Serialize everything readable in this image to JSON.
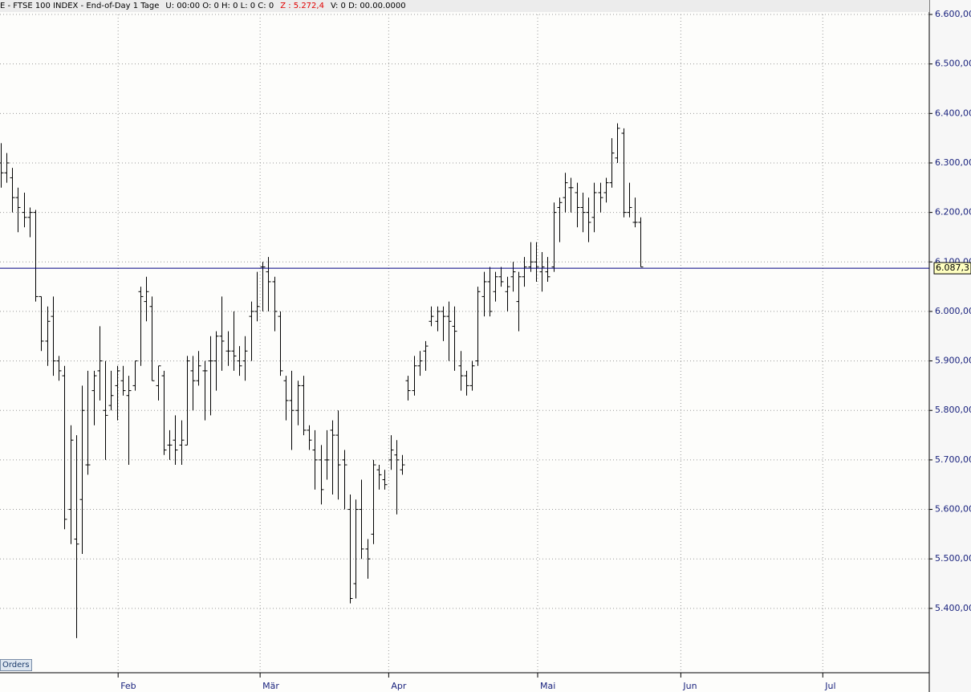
{
  "header": {
    "title": "E - FTSE 100 INDEX - End-of-Day 1 Tage",
    "fields": "U: 00:00   O: 0   H: 0   L: 0   C: 0",
    "highlight": "Z : 5.272,4",
    "tail": "V: 0   D: 00.00.0000"
  },
  "tab": "Orders",
  "chart_data": {
    "type": "ohlc",
    "color": "#000000",
    "open": [
      6300,
      6280,
      6270,
      6230,
      6200,
      6190,
      6200,
      6030,
      5940,
      5990,
      5900,
      5870,
      5600,
      5540,
      5620,
      5690,
      5840,
      5880,
      5800,
      5810,
      5850,
      5860,
      5830,
      5850,
      6040,
      6020,
      6010,
      5850,
      5870,
      5730,
      5740,
      5730,
      5730,
      5880,
      5860,
      5880,
      5900,
      5900,
      5950,
      5920,
      5920,
      5900,
      5900,
      5990,
      6000,
      6090,
      6080,
      6060,
      5990,
      5860,
      5820,
      5800,
      5850,
      5760,
      5720,
      5700,
      5700,
      5760,
      5750,
      5700,
      5600,
      5450,
      5600,
      5520,
      5550,
      5680,
      5660,
      5700,
      5710,
      5680,
      5860,
      5840,
      5890,
      5920,
      5980,
      5980,
      6000,
      5990,
      5970,
      5890,
      5870,
      5850,
      5900,
      6030,
      6060,
      6040,
      6070,
      6040,
      6070,
      6020,
      6070,
      6090,
      6100,
      6080,
      6080,
      6090,
      6210,
      6230,
      6250,
      6240,
      6210,
      6200,
      6190,
      6240,
      6240,
      6260,
      6310,
      6360,
      6200,
      6180,
      6180
    ],
    "high": [
      6340,
      6320,
      6290,
      6250,
      6240,
      6210,
      6205,
      6030,
      6010,
      6030,
      5910,
      5890,
      5770,
      5750,
      5850,
      5880,
      5880,
      5970,
      5900,
      5880,
      5890,
      5890,
      5870,
      5900,
      6050,
      6070,
      6030,
      5890,
      5880,
      5760,
      5790,
      5780,
      5910,
      5910,
      5920,
      5900,
      5950,
      5960,
      6030,
      5960,
      6000,
      5930,
      5950,
      6020,
      6080,
      6100,
      6110,
      6070,
      6000,
      5870,
      5880,
      5860,
      5870,
      5770,
      5760,
      5730,
      5760,
      5780,
      5800,
      5720,
      5630,
      5620,
      5660,
      5540,
      5700,
      5690,
      5680,
      5750,
      5740,
      5710,
      5870,
      5910,
      5920,
      5940,
      6010,
      6010,
      6010,
      6020,
      6010,
      5920,
      5880,
      5900,
      6050,
      6080,
      6090,
      6080,
      6090,
      6070,
      6100,
      6080,
      6110,
      6140,
      6140,
      6120,
      6110,
      6220,
      6230,
      6280,
      6270,
      6260,
      6240,
      6230,
      6260,
      6260,
      6270,
      6350,
      6380,
      6370,
      6260,
      6230,
      6190
    ],
    "low": [
      6250,
      6260,
      6200,
      6160,
      6170,
      6150,
      6020,
      5920,
      5890,
      5870,
      5860,
      5560,
      5530,
      5340,
      5510,
      5670,
      5770,
      5820,
      5700,
      5800,
      5780,
      5830,
      5690,
      5840,
      5890,
      5980,
      5860,
      5820,
      5710,
      5700,
      5690,
      5690,
      5730,
      5800,
      5850,
      5780,
      5790,
      5840,
      5880,
      5890,
      5880,
      5870,
      5860,
      5900,
      5980,
      6000,
      6000,
      5960,
      5870,
      5780,
      5720,
      5770,
      5750,
      5720,
      5640,
      5610,
      5660,
      5630,
      5620,
      5600,
      5410,
      5420,
      5500,
      5460,
      5530,
      5640,
      5640,
      5680,
      5590,
      5670,
      5820,
      5830,
      5870,
      5880,
      5970,
      5960,
      5940,
      5900,
      5880,
      5840,
      5830,
      5840,
      5890,
      5990,
      5990,
      6020,
      6050,
      6000,
      6040,
      5960,
      6050,
      6080,
      6060,
      6040,
      6060,
      6080,
      6140,
      6200,
      6200,
      6170,
      6160,
      6140,
      6160,
      6200,
      6220,
      6250,
      6300,
      6190,
      6190,
      6170,
      6090
    ],
    "close": [
      6280,
      6300,
      6230,
      6210,
      6190,
      6200,
      6030,
      5940,
      5980,
      5900,
      5880,
      5580,
      5740,
      5530,
      5800,
      5690,
      5870,
      5900,
      5790,
      5830,
      5880,
      5840,
      5840,
      5900,
      6030,
      6040,
      5860,
      5890,
      5720,
      5730,
      5720,
      5740,
      5900,
      5860,
      5890,
      5880,
      5900,
      5950,
      5940,
      5920,
      5910,
      5890,
      5920,
      6000,
      6010,
      6090,
      6060,
      6000,
      5880,
      5820,
      5800,
      5850,
      5760,
      5740,
      5700,
      5640,
      5700,
      5750,
      5690,
      5690,
      5420,
      5600,
      5520,
      5500,
      5690,
      5670,
      5650,
      5720,
      5700,
      5690,
      5840,
      5890,
      5900,
      5930,
      5990,
      6000,
      5990,
      5980,
      5960,
      5870,
      5850,
      5890,
      6040,
      6060,
      6000,
      6070,
      6060,
      6050,
      6080,
      6070,
      6090,
      6100,
      6090,
      6090,
      6070,
      6200,
      6220,
      6260,
      6250,
      6210,
      6200,
      6180,
      6240,
      6230,
      6260,
      6320,
      6370,
      6200,
      6210,
      6180,
      6090
    ],
    "xlim": [
      -0.1,
      159.6
    ],
    "xticks": [
      {
        "value": 20.2,
        "label": "Feb"
      },
      {
        "value": 44.6,
        "label": "Mär"
      },
      {
        "value": 66.7,
        "label": "Apr"
      },
      {
        "value": 92.3,
        "label": "Mai"
      },
      {
        "value": 116.9,
        "label": "Jun"
      },
      {
        "value": 141.3,
        "label": "Jul"
      }
    ],
    "ylim": [
      5270,
      6613
    ],
    "yticks": [
      {
        "value": 5400,
        "label": "5.400,00"
      },
      {
        "value": 5500,
        "label": "5.500,00"
      },
      {
        "value": 5600,
        "label": "5.600,00"
      },
      {
        "value": 5700,
        "label": "5.700,00"
      },
      {
        "value": 5800,
        "label": "5.800,00"
      },
      {
        "value": 5900,
        "label": "5.900,00"
      },
      {
        "value": 6000,
        "label": "6.000,00"
      },
      {
        "value": 6100,
        "label": "6.100,00"
      },
      {
        "value": 6200,
        "label": "6.200,00"
      },
      {
        "value": 6300,
        "label": "6.300,00"
      },
      {
        "value": 6400,
        "label": "6.400,00"
      },
      {
        "value": 6500,
        "label": "6.500,00"
      },
      {
        "value": 6600,
        "label": "6.600,00"
      }
    ],
    "grid": true,
    "last_price": {
      "value": 6087.3,
      "label": "6.087,3",
      "color": "#000080"
    }
  }
}
